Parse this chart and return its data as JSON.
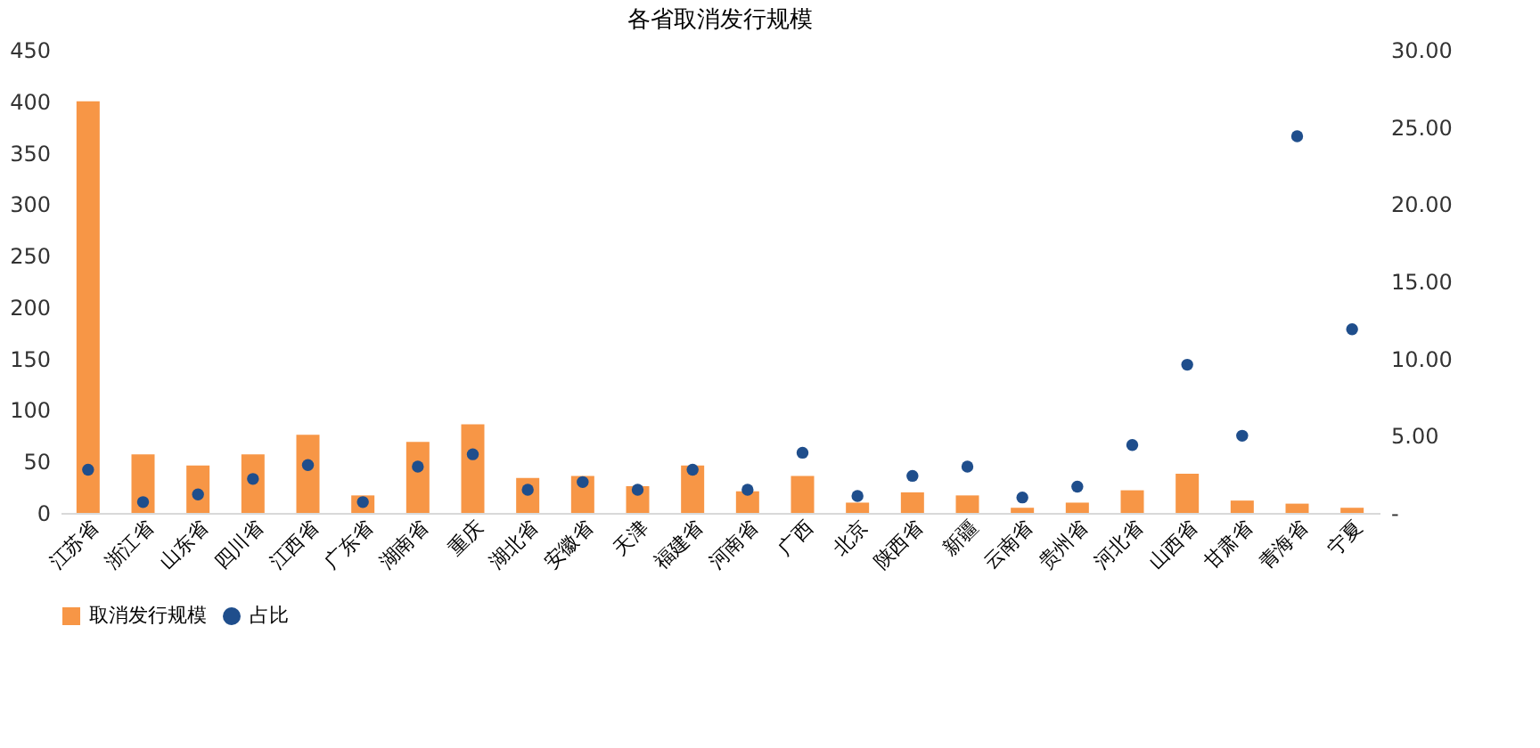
{
  "chart_data": {
    "type": "bar",
    "title": "各省取消发行规模",
    "categories": [
      "江苏省",
      "浙江省",
      "山东省",
      "四川省",
      "江西省",
      "广东省",
      "湖南省",
      "重庆",
      "湖北省",
      "安徽省",
      "天津",
      "福建省",
      "河南省",
      "广西",
      "北京",
      "陕西省",
      "新疆",
      "云南省",
      "贵州省",
      "河北省",
      "山西省",
      "甘肃省",
      "青海省",
      "宁夏"
    ],
    "series": [
      {
        "name": "取消发行规模",
        "color": "#f79646",
        "values": [
          400,
          57,
          46,
          57,
          76,
          17,
          69,
          86,
          34,
          36,
          26,
          46,
          21,
          36,
          10,
          20,
          17,
          5,
          10,
          22,
          38,
          12,
          9,
          5
        ]
      },
      {
        "name": "占比",
        "type": "scatter",
        "axis": "y2",
        "color": "#1f4e8c",
        "marker": "circle",
        "values": [
          2.8,
          0.7,
          1.2,
          2.2,
          3.1,
          0.7,
          3.0,
          3.8,
          1.5,
          2.0,
          1.5,
          2.8,
          1.5,
          3.9,
          1.1,
          2.4,
          3.0,
          1.0,
          1.7,
          4.4,
          9.6,
          5.0,
          24.4,
          11.9
        ]
      }
    ],
    "ylim": [
      0,
      450
    ],
    "yticks": [
      0,
      50,
      100,
      150,
      200,
      250,
      300,
      350,
      400,
      450
    ],
    "y2lim": [
      0,
      30
    ],
    "y2ticks": [
      {
        "value": 0,
        "label": "-"
      },
      {
        "value": 5,
        "label": "5.00"
      },
      {
        "value": 10,
        "label": "10.00"
      },
      {
        "value": 15,
        "label": "15.00"
      },
      {
        "value": 20,
        "label": "20.00"
      },
      {
        "value": 25,
        "label": "25.00"
      },
      {
        "value": 30,
        "label": "30.00"
      }
    ],
    "grid": false,
    "legend": "bottom"
  }
}
